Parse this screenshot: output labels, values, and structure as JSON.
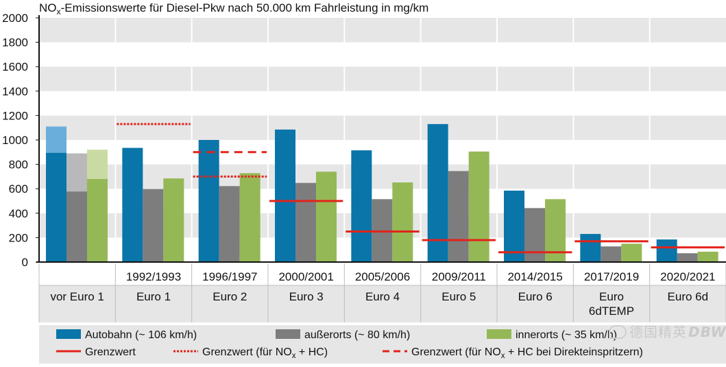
{
  "chart_data": {
    "type": "bar",
    "title": "NOx-Emissionswerte für Diesel-Pkw nach 50.000 km Fahrleistung in mg/km",
    "title_parts": {
      "pre": "NO",
      "sub": "x",
      "post": "-Emissionswerte für Diesel-Pkw nach 50.000 km Fahrleistung in mg/km"
    },
    "ylim": [
      0,
      2000
    ],
    "yticks": [
      0,
      200,
      400,
      600,
      800,
      1000,
      1200,
      1400,
      1600,
      1800,
      2000
    ],
    "grid": "horizontal bands",
    "categories": [
      {
        "years": "",
        "norm": "vor Euro 1"
      },
      {
        "years": "1992/1993",
        "norm": "Euro 1"
      },
      {
        "years": "1996/1997",
        "norm": "Euro 2"
      },
      {
        "years": "2000/2001",
        "norm": "Euro 3"
      },
      {
        "years": "2005/2006",
        "norm": "Euro 4"
      },
      {
        "years": "2009/2011",
        "norm": "Euro 5"
      },
      {
        "years": "2014/2015",
        "norm": "Euro 6"
      },
      {
        "years": "2017/2019",
        "norm": "Euro 6dTEMP"
      },
      {
        "years": "2020/2021",
        "norm": "Euro 6d"
      }
    ],
    "series": [
      {
        "name": "Autobahn (~ 106 km/h)",
        "color": "#0a75a8",
        "values": [
          895,
          935,
          1000,
          1085,
          915,
          1130,
          585,
          230,
          185
        ],
        "range_top_first": 1110,
        "range_color": "#6aaedb"
      },
      {
        "name": "außerorts (~ 80 km/h)",
        "color": "#7d7d7e",
        "values": [
          578,
          598,
          622,
          648,
          515,
          745,
          442,
          128,
          72
        ],
        "range_top_first": 890,
        "range_color": "#b9b9bb"
      },
      {
        "name": "innerorts (~ 35 km/h)",
        "color": "#95b856",
        "values": [
          680,
          685,
          728,
          740,
          652,
          905,
          515,
          150,
          85
        ],
        "range_top_first": 920,
        "range_color": "#c9dba2"
      }
    ],
    "limits": [
      {
        "category": 1,
        "value": 1130,
        "style": "dotted"
      },
      {
        "category": 2,
        "value": 700,
        "style": "dotted"
      },
      {
        "category": 2,
        "value": 900,
        "style": "dashed"
      },
      {
        "category": 3,
        "value": 500,
        "style": "solid"
      },
      {
        "category": 4,
        "value": 250,
        "style": "solid"
      },
      {
        "category": 5,
        "value": 180,
        "style": "solid"
      },
      {
        "category": 6,
        "value": 80,
        "style": "solid"
      },
      {
        "category": 7,
        "value": 170,
        "style": "solid"
      },
      {
        "category": 8,
        "value": 120,
        "style": "solid"
      }
    ],
    "limit_color": "#e2231a",
    "legend": {
      "placement": "bottom",
      "grenzwert": "Grenzwert",
      "grenzwert_nox_hc": {
        "pre": "Grenzwert (für NO",
        "sub": "x",
        "post": " + HC)"
      },
      "grenzwert_direkt": {
        "pre": "Grenzwert (für NO",
        "sub": "x",
        "post": " + HC bei Direkteinspritzern)"
      }
    }
  },
  "watermark": {
    "icon": "wechat-icon",
    "text": "德国精英",
    "tail": "DBW"
  }
}
